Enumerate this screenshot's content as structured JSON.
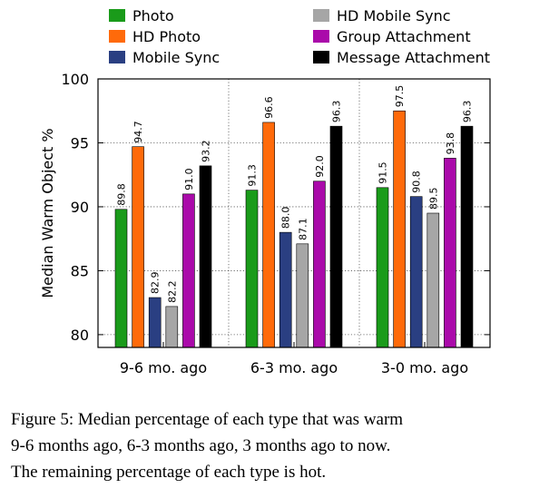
{
  "chart_data": {
    "type": "bar",
    "categories": [
      "9-6 mo. ago",
      "6-3 mo. ago",
      "3-0 mo. ago"
    ],
    "series": [
      {
        "name": "Photo",
        "color": "#1a9b1a",
        "values": [
          89.8,
          91.3,
          91.5
        ]
      },
      {
        "name": "HD Photo",
        "color": "#ff6a0a",
        "values": [
          94.7,
          96.6,
          97.5
        ]
      },
      {
        "name": "Mobile Sync",
        "color": "#2a3f82",
        "values": [
          82.9,
          88.0,
          90.8
        ]
      },
      {
        "name": "HD Mobile Sync",
        "color": "#a6a6a6",
        "values": [
          82.2,
          87.1,
          89.5
        ]
      },
      {
        "name": "Group Attachment",
        "color": "#aa0aaa",
        "values": [
          91.0,
          92.0,
          93.8
        ]
      },
      {
        "name": "Message Attachment",
        "color": "#000000",
        "values": [
          93.2,
          96.3,
          96.3
        ]
      }
    ],
    "value_labels": [
      [
        "89.8",
        "91.3",
        "91.5"
      ],
      [
        "94.7",
        "96.6",
        "97.5"
      ],
      [
        "82.9",
        "88.0",
        "90.8"
      ],
      [
        "82.2",
        "87.1",
        "89.5"
      ],
      [
        "91.0",
        "92.0",
        "93.8"
      ],
      [
        "93.2",
        "96.3",
        "96.3"
      ]
    ],
    "ylabel": "Median Warm Object %",
    "ylim": [
      79,
      100
    ],
    "yticks": [
      80,
      85,
      90,
      95,
      100
    ],
    "grid": "dotted",
    "legend": "top"
  },
  "caption": {
    "lines": [
      "Figure 5: Median percentage of each type that was warm",
      "9-6 months ago, 6-3 months ago, 3 months ago to now.",
      "The remaining percentage of each type is hot."
    ]
  }
}
